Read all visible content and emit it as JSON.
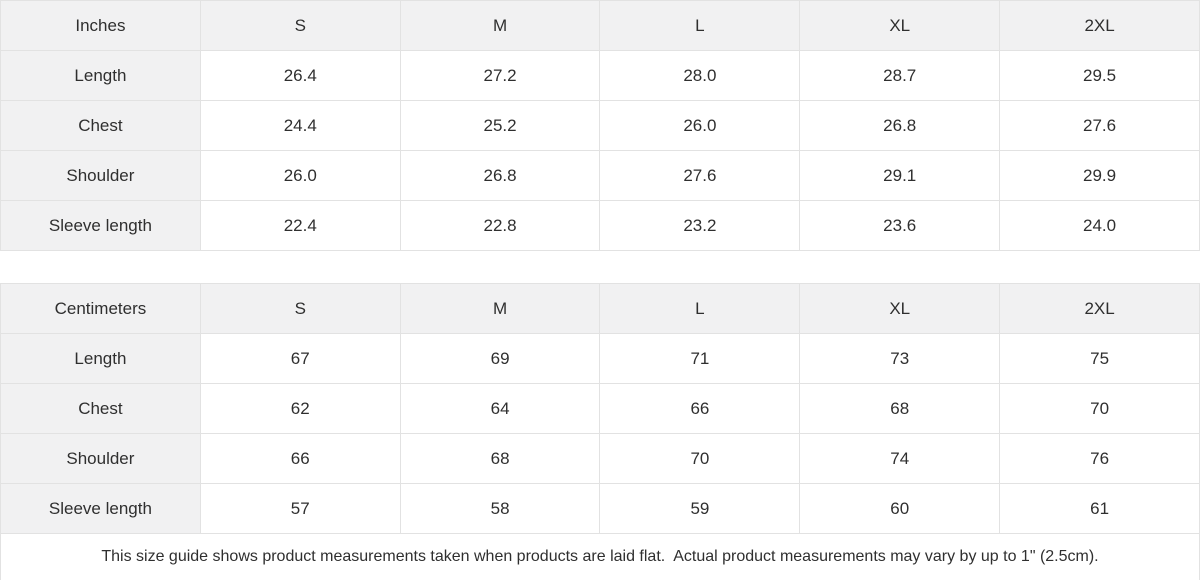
{
  "tables": [
    {
      "unit_label": "Inches",
      "columns": [
        "S",
        "M",
        "L",
        "XL",
        "2XL"
      ],
      "rows": [
        {
          "label": "Length",
          "values": [
            "26.4",
            "27.2",
            "28.0",
            "28.7",
            "29.5"
          ]
        },
        {
          "label": "Chest",
          "values": [
            "24.4",
            "25.2",
            "26.0",
            "26.8",
            "27.6"
          ]
        },
        {
          "label": "Shoulder",
          "values": [
            "26.0",
            "26.8",
            "27.6",
            "29.1",
            "29.9"
          ]
        },
        {
          "label": "Sleeve length",
          "values": [
            "22.4",
            "22.8",
            "23.2",
            "23.6",
            "24.0"
          ]
        }
      ]
    },
    {
      "unit_label": "Centimeters",
      "columns": [
        "S",
        "M",
        "L",
        "XL",
        "2XL"
      ],
      "rows": [
        {
          "label": "Length",
          "values": [
            "67",
            "69",
            "71",
            "73",
            "75"
          ]
        },
        {
          "label": "Chest",
          "values": [
            "62",
            "64",
            "66",
            "68",
            "70"
          ]
        },
        {
          "label": "Shoulder",
          "values": [
            "66",
            "68",
            "70",
            "74",
            "76"
          ]
        },
        {
          "label": "Sleeve length",
          "values": [
            "57",
            "58",
            "59",
            "60",
            "61"
          ]
        }
      ]
    }
  ],
  "footer": {
    "note": "This size guide shows product measurements taken when products are laid flat.  Actual product measurements may vary by up to 1\" (2.5cm)."
  },
  "colors": {
    "header_bg": "#f1f1f2",
    "border": "#e2e2e2",
    "text": "#2f2f2f"
  }
}
